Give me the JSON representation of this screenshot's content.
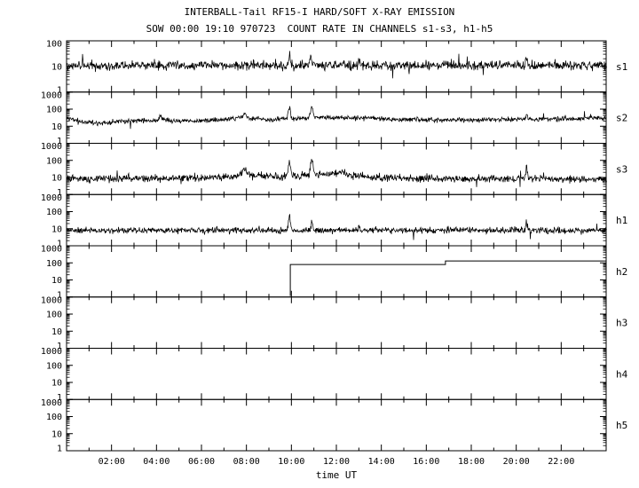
{
  "title_line1": "INTERBALL-Tail RF15-I HARD/SOFT X-RAY EMISSION",
  "title_line2": "SOW 00:00 19:10 970723  COUNT RATE IN CHANNELS s1-s3, h1-h5",
  "xlabel": "time UT",
  "colors": {
    "foreground": "#000000",
    "background": "#ffffff"
  },
  "chart_data": {
    "type": "line",
    "title": "INTERBALL-Tail RF15-I HARD/SOFT X-RAY EMISSION",
    "subtitle": "SOW 00:00 19:10 970723  COUNT RATE IN CHANNELS s1-s3, h1-h5",
    "xlabel": "time UT",
    "x_range_hours": [
      0,
      24
    ],
    "x_major_tick_hours": 2,
    "x_tick_label_hours": [
      2,
      4,
      6,
      8,
      10,
      12,
      14,
      16,
      18,
      20,
      22
    ],
    "x_tick_labels": [
      "02:00",
      "04:00",
      "06:00",
      "08:00",
      "10:00",
      "12:00",
      "14:00",
      "16:00",
      "18:00",
      "20:00",
      "22:00"
    ],
    "y_scale": "log",
    "panels": [
      {
        "label": "s1",
        "ylim": [
          1,
          100
        ],
        "yticks": [
          1,
          10,
          100
        ],
        "series": "noisy",
        "envelope": [
          [
            0,
            11
          ],
          [
            24,
            11
          ]
        ],
        "noise_log_sd": 0.09,
        "spikes": [
          {
            "t": 9.9,
            "v": 28,
            "w": 0.04
          },
          {
            "t": 10.85,
            "v": 22,
            "w": 0.04
          },
          {
            "t": 13.0,
            "v": 17,
            "w": 0.03
          },
          {
            "t": 20.45,
            "v": 20,
            "w": 0.03
          }
        ]
      },
      {
        "label": "s2",
        "ylim": [
          1,
          1000
        ],
        "yticks": [
          1,
          10,
          100,
          1000
        ],
        "series": "noisy",
        "envelope": [
          [
            0,
            30
          ],
          [
            0.7,
            18
          ],
          [
            1.5,
            15
          ],
          [
            2.5,
            19
          ],
          [
            3.5,
            21
          ],
          [
            4.2,
            24
          ],
          [
            5,
            20
          ],
          [
            6,
            20
          ],
          [
            7,
            24
          ],
          [
            7.7,
            30
          ],
          [
            8.4,
            28
          ],
          [
            9,
            24
          ],
          [
            9.6,
            26
          ],
          [
            10.4,
            28
          ],
          [
            11.2,
            32
          ],
          [
            12,
            32
          ],
          [
            13,
            30
          ],
          [
            14,
            27
          ],
          [
            15,
            25
          ],
          [
            16,
            24
          ],
          [
            18,
            24
          ],
          [
            20,
            25
          ],
          [
            22,
            27
          ],
          [
            24,
            30
          ]
        ],
        "noise_log_sd": 0.07,
        "spikes": [
          {
            "t": 4.15,
            "v": 38,
            "w": 0.05
          },
          {
            "t": 7.9,
            "v": 55,
            "w": 0.07
          },
          {
            "t": 9.9,
            "v": 110,
            "w": 0.05
          },
          {
            "t": 10.9,
            "v": 130,
            "w": 0.05
          },
          {
            "t": 20.45,
            "v": 55,
            "w": 0.035
          }
        ]
      },
      {
        "label": "s3",
        "ylim": [
          1,
          1000
        ],
        "yticks": [
          1,
          10,
          100,
          1000
        ],
        "series": "noisy",
        "envelope": [
          [
            0,
            9
          ],
          [
            1,
            8.5
          ],
          [
            3,
            9
          ],
          [
            5,
            9
          ],
          [
            6.5,
            10
          ],
          [
            7.4,
            13
          ],
          [
            8,
            16
          ],
          [
            8.6,
            13
          ],
          [
            9.2,
            11
          ],
          [
            9.7,
            12
          ],
          [
            10.4,
            13
          ],
          [
            11.2,
            16
          ],
          [
            12,
            15
          ],
          [
            12.8,
            13
          ],
          [
            13.6,
            10
          ],
          [
            15,
            9
          ],
          [
            17,
            8.5
          ],
          [
            21,
            8.5
          ],
          [
            24,
            8
          ]
        ],
        "noise_log_sd": 0.1,
        "spikes": [
          {
            "t": 7.9,
            "v": 35,
            "w": 0.07
          },
          {
            "t": 9.9,
            "v": 95,
            "w": 0.05
          },
          {
            "t": 10.9,
            "v": 110,
            "w": 0.05
          },
          {
            "t": 12.2,
            "v": 24,
            "w": 0.15
          },
          {
            "t": 20.45,
            "v": 40,
            "w": 0.035
          }
        ]
      },
      {
        "label": "h1",
        "ylim": [
          1,
          1000
        ],
        "yticks": [
          1,
          10,
          100,
          1000
        ],
        "series": "noisy",
        "envelope": [
          [
            0,
            8
          ],
          [
            24,
            8
          ]
        ],
        "noise_log_sd": 0.09,
        "spikes": [
          {
            "t": 9.9,
            "v": 50,
            "w": 0.04
          },
          {
            "t": 10.9,
            "v": 28,
            "w": 0.04
          },
          {
            "t": 13.0,
            "v": 16,
            "w": 0.03
          },
          {
            "t": 20.45,
            "v": 30,
            "w": 0.03
          }
        ]
      },
      {
        "label": "h2",
        "ylim": [
          1,
          1000
        ],
        "yticks": [
          1,
          10,
          100,
          1000
        ],
        "series": "step",
        "onset_floor": 1.15,
        "segments": [
          {
            "t0": 9.95,
            "t1": 16.85,
            "v": 80
          },
          {
            "t0": 16.85,
            "t1": 24,
            "v": 130
          }
        ]
      },
      {
        "label": "h3",
        "ylim": [
          1,
          1000
        ],
        "yticks": [
          1,
          10,
          100,
          1000
        ],
        "series": "none"
      },
      {
        "label": "h4",
        "ylim": [
          1,
          1000
        ],
        "yticks": [
          1,
          10,
          100,
          1000
        ],
        "series": "none"
      },
      {
        "label": "h5",
        "ylim": [
          1,
          1000
        ],
        "yticks": [
          1,
          10,
          100,
          1000
        ],
        "series": "none"
      }
    ]
  }
}
